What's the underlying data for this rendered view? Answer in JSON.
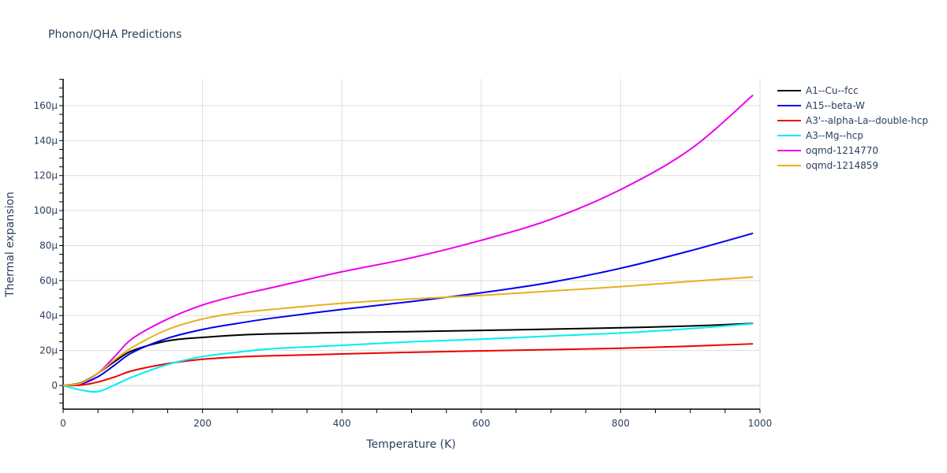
{
  "chart": {
    "title": "Phonon/QHA Predictions"
  },
  "chart_data": {
    "type": "line",
    "title": "Phonon/QHA Predictions",
    "xlabel": "Temperature (K)",
    "ylabel": "Thermal expansion",
    "xlim": [
      0,
      1000
    ],
    "ylim": [
      -1.4e-05,
      0.000176
    ],
    "x_ticks": [
      0,
      200,
      400,
      600,
      800,
      1000
    ],
    "x_tick_labels": [
      "0",
      "200",
      "400",
      "600",
      "800",
      "1000"
    ],
    "y_ticks": [
      0,
      20,
      40,
      60,
      80,
      100,
      120,
      140,
      160
    ],
    "y_tick_labels": [
      "0",
      "20μ",
      "40μ",
      "60μ",
      "80μ",
      "100μ",
      "120μ",
      "140μ",
      "160μ"
    ],
    "y_unit_scale": "1e-6",
    "grid": true,
    "legend_position": "right",
    "x": [
      0,
      25,
      50,
      75,
      100,
      150,
      200,
      250,
      300,
      400,
      500,
      600,
      700,
      800,
      900,
      990
    ],
    "series": [
      {
        "name": "A1--Cu--fcc",
        "color": "#000000",
        "values": [
          0,
          1.5,
          7,
          14,
          20,
          25.5,
          27.5,
          28.8,
          29.5,
          30.3,
          30.8,
          31.5,
          32.2,
          33,
          34,
          35.5
        ]
      },
      {
        "name": "A15--beta-W",
        "color": "#0000ee",
        "values": [
          0,
          0.8,
          5,
          12,
          19,
          27,
          32,
          35.5,
          38.5,
          43.5,
          48,
          53,
          59,
          67,
          77,
          87
        ]
      },
      {
        "name": "A3'--alpha-La--double-hcp",
        "color": "#ee0000",
        "values": [
          0,
          0.2,
          2,
          5,
          8.5,
          12.5,
          15,
          16.3,
          17,
          18,
          19,
          19.8,
          20.5,
          21.3,
          22.5,
          23.8
        ]
      },
      {
        "name": "A3--Mg--hcp",
        "color": "#00eeee",
        "values": [
          0,
          -2.5,
          -3.5,
          0.5,
          5,
          12,
          16.5,
          19,
          21,
          23,
          25,
          26.5,
          28.3,
          30,
          32.5,
          35.3
        ]
      },
      {
        "name": "oqmd-1214770",
        "color": "#ee00ee",
        "values": [
          0,
          1.2,
          7,
          17,
          27,
          38,
          46,
          51.5,
          56,
          65,
          73,
          83,
          95,
          112,
          135,
          166
        ]
      },
      {
        "name": "oqmd-1214859",
        "color": "#e6b01e",
        "values": [
          0,
          1.3,
          7,
          15,
          22,
          32,
          38,
          41.5,
          43.5,
          47,
          49.5,
          51.5,
          54,
          56.5,
          59.5,
          62
        ]
      }
    ]
  }
}
